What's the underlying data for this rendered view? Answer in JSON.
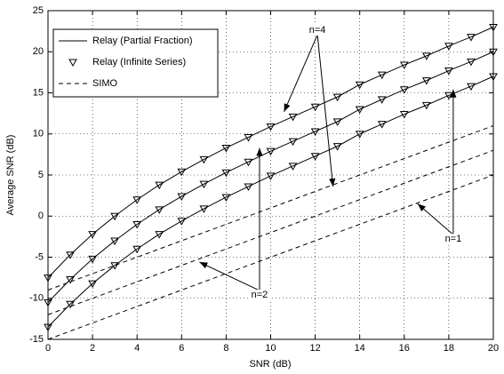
{
  "chart_data": {
    "type": "line",
    "xlabel": "SNR (dB)",
    "ylabel": "Average SNR (dB)",
    "xlim": [
      0,
      20
    ],
    "ylim": [
      -15,
      25
    ],
    "xticks": [
      0,
      2,
      4,
      6,
      8,
      10,
      12,
      14,
      16,
      18,
      20
    ],
    "yticks": [
      -15,
      -10,
      -5,
      0,
      5,
      10,
      15,
      20,
      25
    ],
    "grid": true,
    "legend_position": "upper left",
    "legend": [
      {
        "label": "Relay (Partial Fraction)",
        "style": "solid"
      },
      {
        "label": "Relay (Infinite Series)",
        "style": "triangle"
      },
      {
        "label": "SIMO",
        "style": "dashed"
      }
    ],
    "x": [
      0,
      1,
      2,
      3,
      4,
      5,
      6,
      7,
      8,
      9,
      10,
      11,
      12,
      13,
      14,
      15,
      16,
      17,
      18,
      19,
      20
    ],
    "series": [
      {
        "color": "#000000",
        "style": "solid",
        "marker": "triangle",
        "values": [
          -7.5,
          -4.7,
          -2.2,
          0,
          2,
          3.8,
          5.4,
          6.9,
          8.3,
          9.6,
          10.9,
          12.1,
          13.3,
          14.5,
          16,
          17.2,
          18.4,
          19.5,
          20.7,
          21.8,
          23
        ]
      },
      {
        "color": "#000000",
        "style": "solid",
        "marker": "triangle",
        "values": [
          -10.5,
          -7.7,
          -5.2,
          -3,
          -1,
          0.8,
          2.4,
          3.9,
          5.3,
          6.6,
          7.9,
          9.1,
          10.3,
          11.5,
          13,
          14.2,
          15.4,
          16.5,
          17.7,
          18.8,
          20
        ]
      },
      {
        "color": "#000000",
        "style": "solid",
        "marker": "triangle",
        "values": [
          -13.5,
          -10.7,
          -8.2,
          -6,
          -4,
          -2.2,
          -0.6,
          0.9,
          2.3,
          3.6,
          4.9,
          6.1,
          7.3,
          8.5,
          10,
          11.2,
          12.4,
          13.5,
          14.7,
          15.8,
          17
        ]
      },
      {
        "color": "#000000",
        "style": "dashed",
        "values": [
          -9,
          -8,
          -7,
          -6,
          -5,
          -4,
          -3,
          -2,
          -1,
          0,
          1,
          2,
          3,
          4,
          5,
          6,
          7,
          8,
          9,
          10,
          11
        ]
      },
      {
        "color": "#000000",
        "style": "dashed",
        "values": [
          -12,
          -11,
          -10,
          -9,
          -8,
          -7,
          -6,
          -5,
          -4,
          -3,
          -2,
          -1,
          0,
          1,
          2,
          3,
          4,
          5,
          6,
          7,
          8
        ]
      },
      {
        "color": "#000000",
        "style": "dashed",
        "values": [
          -15,
          -14,
          -13,
          -12,
          -11,
          -10,
          -9,
          -8,
          -7,
          -6,
          -5,
          -4,
          -3,
          -2,
          -1,
          0,
          1,
          2,
          3,
          4,
          5
        ]
      }
    ],
    "annotations": [
      {
        "text": "n=4",
        "x": 12.1,
        "y": 22.6,
        "arrows": [
          [
            10.6,
            12.7
          ],
          [
            12.8,
            3.6
          ]
        ]
      },
      {
        "text": "n=1",
        "x": 18.2,
        "y": -2.8,
        "arrows": [
          [
            18.2,
            15.4
          ],
          [
            16.6,
            1.5
          ]
        ]
      },
      {
        "text": "n=2",
        "x": 9.5,
        "y": -9.6,
        "arrows": [
          [
            9.5,
            8.3
          ],
          [
            6.8,
            -5.6
          ]
        ]
      }
    ]
  }
}
